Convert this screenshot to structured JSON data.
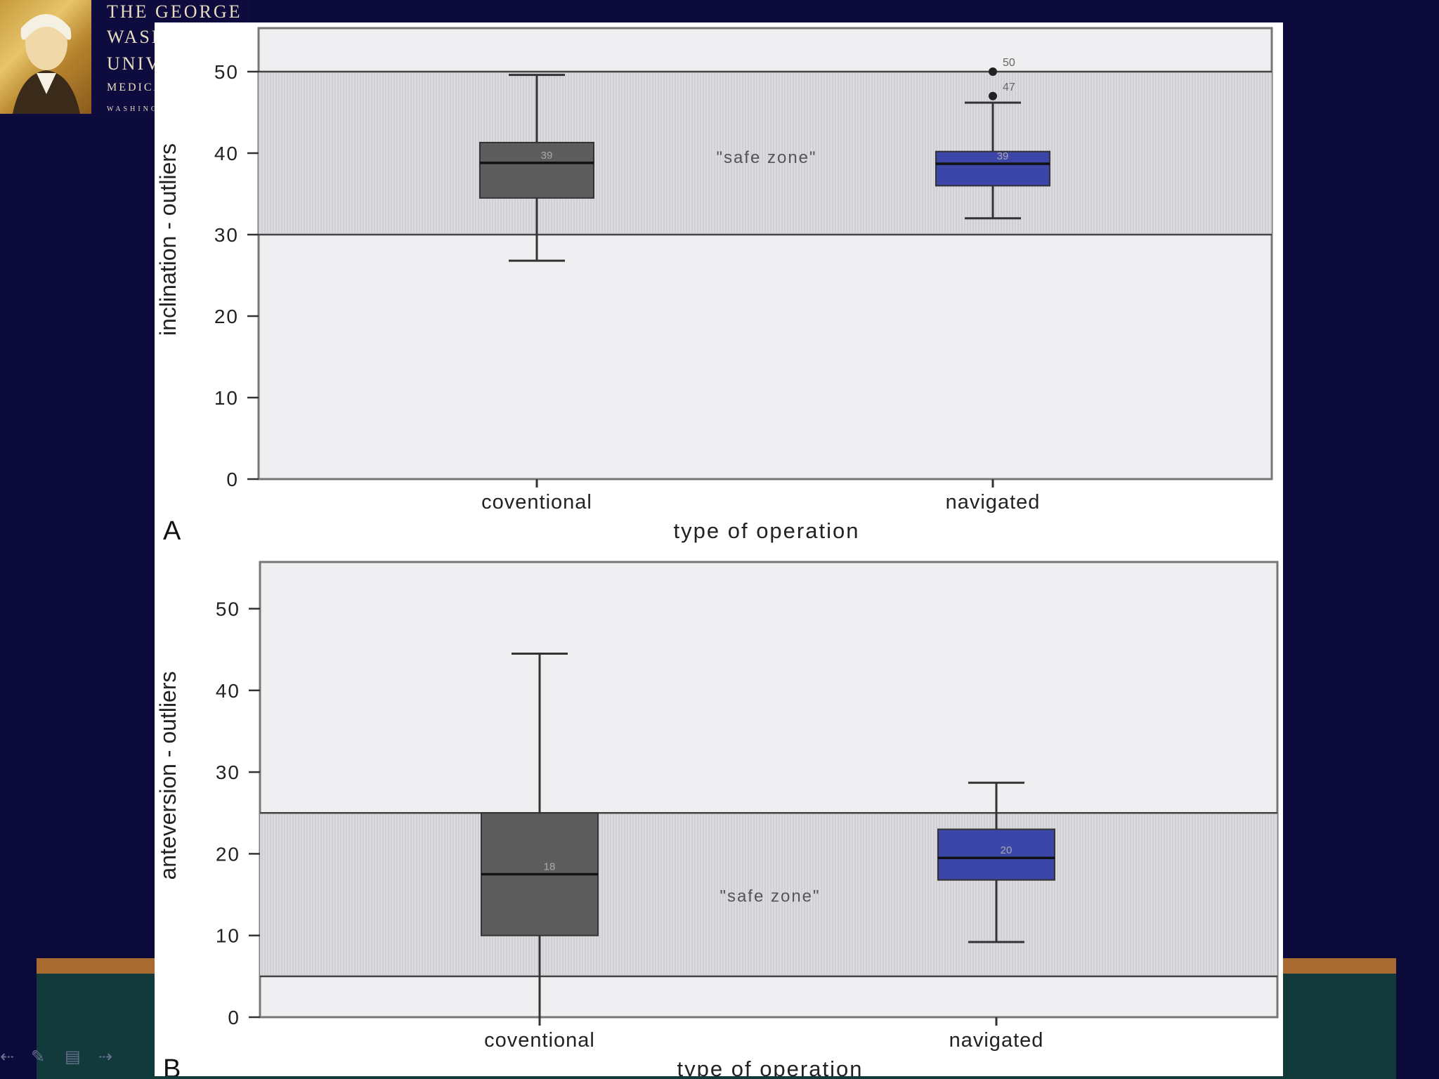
{
  "logo": {
    "lines": [
      "THE GEORGE",
      "WASHINGTON",
      "UNIVERSITY",
      "MEDICAL CENTER",
      "WASHINGTON DC"
    ]
  },
  "colors": {
    "background": "#0b0a3b",
    "panel_border": "#a86a30",
    "panel_fill": "#123a3a",
    "conventional_box": "#5d5d5d",
    "navigated_box": "#3b46a8",
    "plot_bg": "#efeff1",
    "safe_zone": "#dcdce0"
  },
  "chart_data": [
    {
      "type": "box",
      "panel_label": "A",
      "xlabel": "type of operation",
      "ylabel": "inclination - outliers",
      "categories": [
        "coventional",
        "navigated"
      ],
      "ylim": [
        0,
        55
      ],
      "yticks": [
        0,
        10,
        20,
        30,
        40,
        50
      ],
      "safe_zone": {
        "label": "\"safe zone\"",
        "range": [
          30,
          50
        ]
      },
      "series": [
        {
          "name": "coventional",
          "min": 26.8,
          "q1": 34.5,
          "median": 38.8,
          "q3": 41.3,
          "max": 49.6,
          "median_label": "39"
        },
        {
          "name": "navigated",
          "min": 32,
          "q1": 36,
          "median": 38.7,
          "q3": 40.2,
          "max": 46.2,
          "median_label": "39",
          "outliers": [
            {
              "value": 47,
              "label": "47"
            },
            {
              "value": 50,
              "label": "50"
            }
          ]
        }
      ]
    },
    {
      "type": "box",
      "panel_label": "B",
      "xlabel": "type of operation",
      "ylabel": "anteversion - outliers",
      "categories": [
        "coventional",
        "navigated"
      ],
      "ylim": [
        0,
        55
      ],
      "yticks": [
        0,
        10,
        20,
        30,
        40,
        50
      ],
      "safe_zone": {
        "label": "\"safe zone\"",
        "range": [
          5,
          25
        ]
      },
      "series": [
        {
          "name": "coventional",
          "min": 0,
          "q1": 10,
          "median": 17.5,
          "q3": 25,
          "max": 44.5,
          "median_label": "18"
        },
        {
          "name": "navigated",
          "min": 9.2,
          "q1": 16.8,
          "median": 19.5,
          "q3": 23,
          "max": 28.7,
          "median_label": "20"
        }
      ]
    }
  ]
}
